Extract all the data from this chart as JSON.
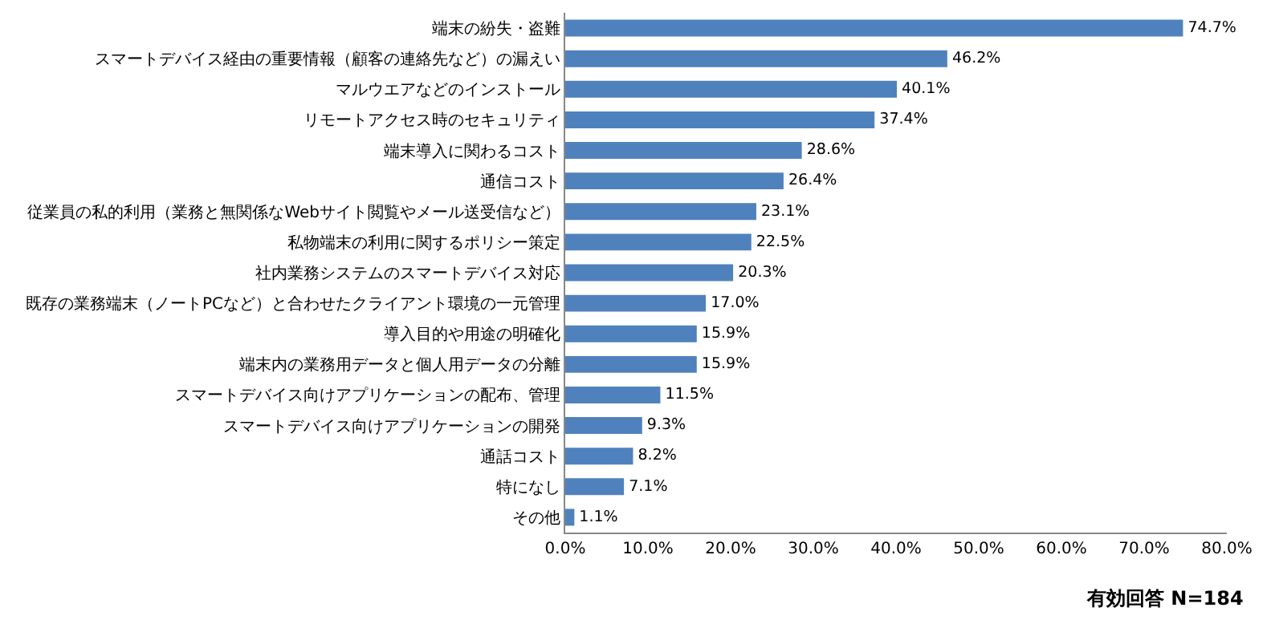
{
  "chart_data": {
    "type": "bar",
    "orientation": "horizontal",
    "color": "#4f81bd",
    "categories": [
      "端末の紛失・盗難",
      "スマートデバイス経由の重要情報（顧客の連絡先など）の漏えい",
      "マルウエアなどのインストール",
      "リモートアクセス時のセキュリティ",
      "端末導入に関わるコスト",
      "通信コスト",
      "従業員の私的利用（業務と無関係なWebサイト閲覧やメール送受信など）",
      "私物端末の利用に関するポリシー策定",
      "社内業務システムのスマートデバイス対応",
      "既存の業務端末（ノートPCなど）と合わせたクライアント環境の一元管理",
      "導入目的や用途の明確化",
      "端末内の業務用データと個人用データの分離",
      "スマートデバイス向けアプリケーションの配布、管理",
      "スマートデバイス向けアプリケーションの開発",
      "通話コスト",
      "特になし",
      "その他"
    ],
    "values": [
      74.7,
      46.2,
      40.1,
      37.4,
      28.6,
      26.4,
      23.1,
      22.5,
      20.3,
      17.0,
      15.9,
      15.9,
      11.5,
      9.3,
      8.2,
      7.1,
      1.1
    ],
    "value_labels": [
      "74.7%",
      "46.2%",
      "40.1%",
      "37.4%",
      "28.6%",
      "26.4%",
      "23.1%",
      "22.5%",
      "20.3%",
      "17.0%",
      "15.9%",
      "15.9%",
      "11.5%",
      "9.3%",
      "8.2%",
      "7.1%",
      "1.1%"
    ],
    "xlim": [
      0,
      80
    ],
    "xticks": [
      {
        "value": 0,
        "label": "0.0%"
      },
      {
        "value": 10,
        "label": "10.0%"
      },
      {
        "value": 20,
        "label": "20.0%"
      },
      {
        "value": 30,
        "label": "30.0%"
      },
      {
        "value": 40,
        "label": "40.0%"
      },
      {
        "value": 50,
        "label": "50.0%"
      },
      {
        "value": 60,
        "label": "60.0%"
      },
      {
        "value": 70,
        "label": "70.0%"
      },
      {
        "value": 80,
        "label": "80.0%"
      }
    ],
    "grid": false,
    "legend": false,
    "annotations": [
      "有効回答 N=184"
    ]
  }
}
